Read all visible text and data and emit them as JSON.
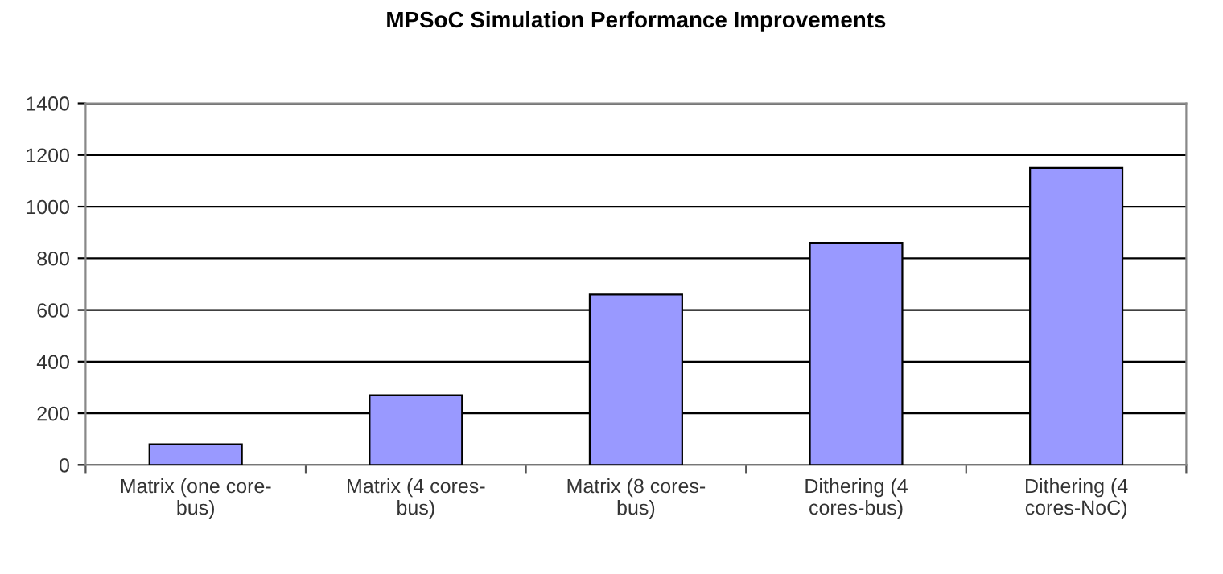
{
  "chart_data": {
    "type": "bar",
    "title": "MPSoC Simulation Performance Improvements",
    "categories": [
      "Matrix (one core-\nbus)",
      "Matrix (4 cores-\nbus)",
      "Matrix (8 cores-\nbus)",
      "Dithering (4\ncores-bus)",
      "Dithering (4\ncores-NoC)"
    ],
    "values": [
      80,
      270,
      660,
      860,
      1150
    ],
    "color": "#9999ff",
    "ylim": [
      0,
      1400
    ],
    "yticks": [
      0,
      200,
      400,
      600,
      800,
      1000,
      1200,
      1400
    ],
    "grid": "y",
    "legend": false
  }
}
